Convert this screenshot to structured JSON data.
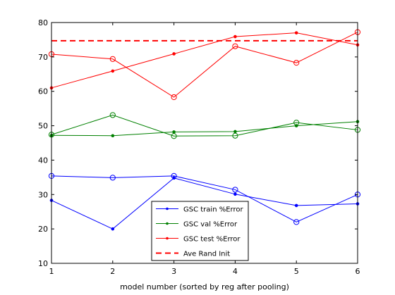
{
  "chart_data": {
    "type": "line",
    "xlabel": "model number (sorted by reg after pooling)",
    "ylabel": "",
    "title": "",
    "xlim": [
      1,
      6
    ],
    "ylim": [
      10,
      80
    ],
    "xticks": [
      1,
      2,
      3,
      4,
      5,
      6
    ],
    "yticks": [
      10,
      20,
      30,
      40,
      50,
      60,
      70,
      80
    ],
    "grid": false,
    "legend_position": "bottom-center",
    "x": [
      1,
      2,
      3,
      4,
      5,
      6
    ],
    "series": [
      {
        "name": "GSC train %Error",
        "color": "#0000ff",
        "linestyle": "solid",
        "marker": "dot",
        "values": [
          28.3,
          20.0,
          34.8,
          30.1,
          26.8,
          27.3
        ]
      },
      {
        "name": "",
        "color": "#0000ff",
        "linestyle": "solid",
        "marker": "circle",
        "values": [
          35.4,
          34.9,
          35.4,
          31.4,
          22.0,
          30.0
        ]
      },
      {
        "name": "GSC val %Error",
        "color": "#008000",
        "linestyle": "solid",
        "marker": "dot",
        "values": [
          47.2,
          47.1,
          48.2,
          48.3,
          50.0,
          51.2
        ]
      },
      {
        "name": "",
        "color": "#008000",
        "linestyle": "solid",
        "marker": "circle",
        "values": [
          47.4,
          53.1,
          47.0,
          47.1,
          50.9,
          48.8
        ]
      },
      {
        "name": "GSC test %Error",
        "color": "#ff0000",
        "linestyle": "solid",
        "marker": "dot",
        "values": [
          61.0,
          65.9,
          70.9,
          75.9,
          77.0,
          73.5
        ]
      },
      {
        "name": "",
        "color": "#ff0000",
        "linestyle": "solid",
        "marker": "circle",
        "values": [
          70.8,
          69.4,
          58.3,
          73.1,
          68.3,
          77.2
        ]
      },
      {
        "name": "Ave Rand Init",
        "color": "#ff0000",
        "linestyle": "dashed",
        "marker": "none",
        "values": [
          74.7,
          74.7,
          74.7,
          74.7,
          74.7,
          74.7
        ]
      }
    ]
  }
}
